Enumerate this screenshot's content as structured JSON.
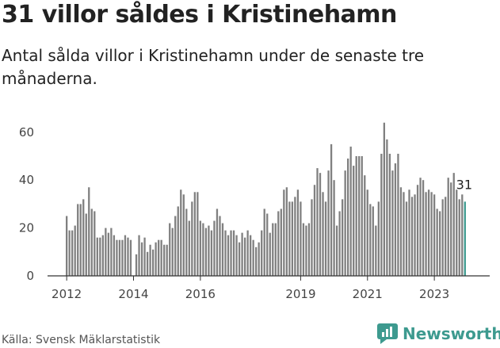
{
  "header": {
    "title": "31 villor såldes i Kristinehamn",
    "subtitle": "Antal sålda villor i Kristinehamn under de senaste tre månaderna."
  },
  "footer": {
    "source": "Källa: Svensk Mäklarstatistik",
    "brand": "Newsworthy"
  },
  "colors": {
    "bar": "#808080",
    "highlight": "#3d9a8f",
    "axis": "#333333",
    "brand": "#3d9a8f"
  },
  "chart_data": {
    "type": "bar",
    "ylim": [
      0,
      65
    ],
    "y_ticks": [
      0,
      20,
      40,
      60
    ],
    "x_ticks": [
      "2012",
      "2014",
      "2016",
      "2019",
      "2021",
      "2023"
    ],
    "annotation": "31",
    "highlight": "last",
    "series": [
      {
        "values": [
          25,
          19,
          19,
          21,
          30,
          30,
          32,
          26,
          37,
          28,
          27,
          16,
          16,
          17,
          20,
          18,
          20,
          17,
          15,
          15,
          15,
          17,
          16,
          15,
          0,
          9,
          17,
          14,
          16,
          10,
          13,
          11,
          14,
          15,
          15,
          13,
          13,
          22,
          20,
          25,
          29,
          36,
          34,
          28,
          23,
          31,
          35,
          35,
          23,
          22,
          20,
          21,
          19,
          23,
          28,
          25,
          22,
          19,
          17,
          19,
          19,
          17,
          14,
          18,
          16,
          19,
          17,
          15,
          12,
          14,
          19,
          28,
          26,
          18,
          22,
          22,
          27,
          28,
          36,
          37,
          31,
          31,
          33,
          36,
          31,
          22,
          21,
          22,
          32,
          38,
          45,
          43,
          35,
          31,
          44,
          55,
          40,
          21,
          27,
          32,
          44,
          49,
          54,
          46,
          50,
          50,
          50,
          42,
          36,
          30,
          29,
          21,
          31,
          51,
          64,
          57,
          51,
          44,
          47,
          51,
          37,
          35,
          31,
          36,
          33,
          34,
          38,
          41,
          40,
          35,
          36,
          35,
          34,
          28,
          27,
          32,
          33,
          41,
          39,
          43,
          36,
          32,
          34,
          31
        ]
      }
    ]
  }
}
